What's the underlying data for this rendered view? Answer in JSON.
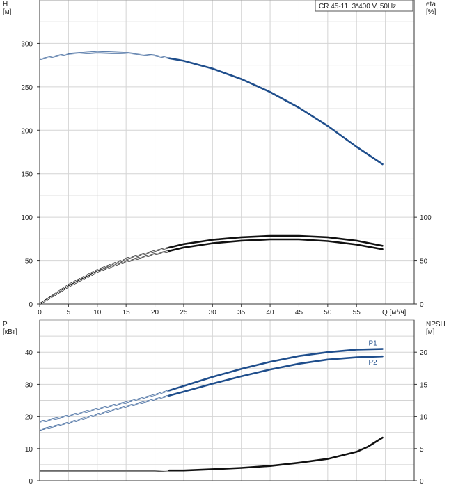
{
  "chart_data": [
    {
      "type": "line",
      "title": "CR 45-11, 3*400 V, 50Hz",
      "xlabel": "Q [м³/ч]",
      "x_ticks": [
        0,
        5,
        10,
        15,
        20,
        25,
        30,
        35,
        40,
        45,
        50,
        55
      ],
      "xlim": [
        0,
        65
      ],
      "left_axis": {
        "name": "H",
        "unit": "[м]",
        "ylim": [
          0,
          350
        ],
        "ticks": [
          0,
          50,
          100,
          150,
          200,
          250,
          300
        ]
      },
      "right_axis": {
        "name": "eta",
        "unit": "[%]",
        "ylim": [
          0,
          350
        ],
        "ticks": [
          0,
          50,
          100
        ]
      },
      "grid": true,
      "series": [
        {
          "axis": "left",
          "color": "#1f4e8c",
          "x": [
            0,
            5,
            10,
            15,
            20,
            22.5,
            25,
            30,
            35,
            40,
            45,
            50,
            55,
            59.5
          ],
          "values": [
            282,
            288,
            290,
            289,
            286,
            283,
            280,
            271,
            259,
            244,
            226,
            205,
            181,
            161
          ],
          "visible_from": 22.5
        },
        {
          "axis": "right",
          "color": "#111111",
          "x": [
            0,
            5,
            10,
            15,
            20,
            22.5,
            25,
            30,
            35,
            40,
            45,
            50,
            55,
            59.5
          ],
          "values": [
            0,
            22,
            39,
            52,
            61,
            65,
            69,
            74,
            77,
            78.5,
            78.5,
            77,
            73,
            67
          ],
          "visible_from": 22.5
        },
        {
          "axis": "right",
          "color": "#111111",
          "x": [
            0,
            5,
            10,
            15,
            20,
            22.5,
            25,
            30,
            35,
            40,
            45,
            50,
            55,
            59.5
          ],
          "values": [
            0,
            20,
            37,
            49,
            57.5,
            61,
            65,
            70,
            73,
            74.5,
            74.5,
            72.5,
            68.5,
            63
          ],
          "visible_from": 22.5
        }
      ]
    },
    {
      "type": "line",
      "xlim": [
        0,
        65
      ],
      "left_axis": {
        "name": "P",
        "unit": "[кВт]",
        "ylim": [
          0,
          50
        ],
        "ticks": [
          0,
          10,
          20,
          30,
          40
        ]
      },
      "right_axis": {
        "name": "NPSH",
        "unit": "[м]",
        "ylim": [
          0,
          25
        ],
        "ticks": [
          0,
          5,
          10,
          15,
          20
        ]
      },
      "grid": true,
      "series": [
        {
          "name": "P1",
          "axis": "left",
          "color": "#1f4e8c",
          "x": [
            0,
            5,
            10,
            15,
            20,
            22.5,
            25,
            30,
            35,
            40,
            45,
            50,
            55,
            59.5
          ],
          "values": [
            18.3,
            20.2,
            22.3,
            24.4,
            26.7,
            28.1,
            29.5,
            32.3,
            34.8,
            37,
            38.8,
            40.0,
            40.8,
            41.0
          ],
          "visible_from": 22.5
        },
        {
          "name": "P2",
          "axis": "left",
          "color": "#1f4e8c",
          "x": [
            0,
            5,
            10,
            15,
            20,
            22.5,
            25,
            30,
            35,
            40,
            45,
            50,
            55,
            59.5
          ],
          "values": [
            15.8,
            18.0,
            20.6,
            23.1,
            25.3,
            26.5,
            27.7,
            30.2,
            32.5,
            34.6,
            36.4,
            37.7,
            38.4,
            38.7
          ],
          "visible_from": 22.5
        },
        {
          "axis": "right",
          "color": "#111111",
          "x": [
            0,
            10,
            20,
            22.5,
            25,
            30,
            35,
            40,
            45,
            50,
            55,
            57,
            59.5
          ],
          "values": [
            1.5,
            1.5,
            1.5,
            1.6,
            1.6,
            1.8,
            2.0,
            2.3,
            2.8,
            3.4,
            4.5,
            5.3,
            6.7
          ],
          "visible_from": 22.5
        }
      ]
    }
  ]
}
